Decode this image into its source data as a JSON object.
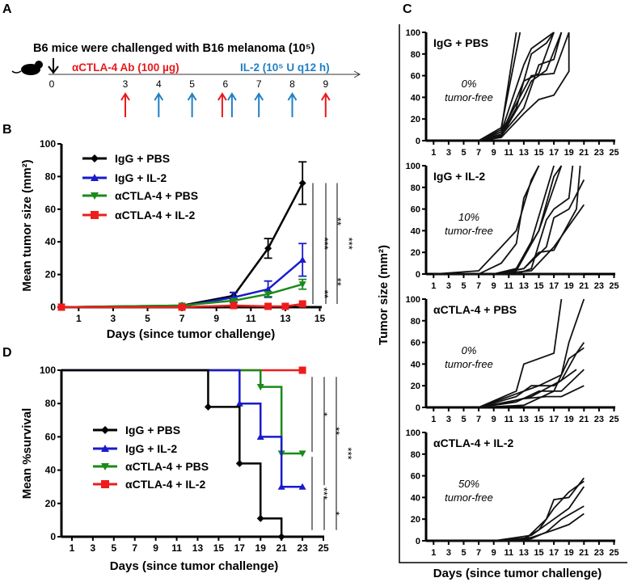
{
  "panels": {
    "a": "A",
    "b": "B",
    "c": "C",
    "d": "D"
  },
  "schedule": {
    "header": "B6 mice were challenged with B16 melanoma (10⁵)",
    "antibody_label": "αCTLA-4 Ab (100 µg)",
    "il2_label": "IL-2 (10⁵ U q12 h)",
    "day_labels": [
      "0",
      "3",
      "4",
      "5",
      "6",
      "7",
      "8",
      "9"
    ],
    "antibody_days": [
      3,
      6,
      9
    ],
    "il2_days": [
      4,
      5,
      6,
      7,
      8
    ],
    "colors": {
      "antibody": "#e8191c",
      "il2": "#1f7fc4"
    }
  },
  "chart_data": [
    {
      "id": "B",
      "type": "line",
      "xlabel": "Days (since tumor challenge)",
      "ylabel": "Mean tumor size (mm²)",
      "xlim": [
        0,
        15
      ],
      "ylim": [
        0,
        100
      ],
      "xticks": [
        1,
        3,
        5,
        7,
        9,
        11,
        13,
        15
      ],
      "yticks": [
        0,
        20,
        40,
        60,
        80,
        100
      ],
      "legend": "top-left",
      "series": [
        {
          "name": "IgG + PBS",
          "color": "#000000",
          "marker": "diamond",
          "x": [
            0,
            7,
            10,
            12,
            14
          ],
          "y": [
            0,
            1,
            7,
            36,
            76
          ],
          "err": [
            0,
            0.5,
            2,
            6,
            13
          ]
        },
        {
          "name": "IgG + IL-2",
          "color": "#1a1acc",
          "marker": "triangle-up",
          "x": [
            0,
            7,
            10,
            12,
            14
          ],
          "y": [
            0,
            0.5,
            6,
            11,
            29
          ],
          "err": [
            0,
            0,
            3,
            5,
            10
          ]
        },
        {
          "name": "αCTLA-4 + PBS",
          "color": "#1a8a1a",
          "marker": "triangle-down",
          "x": [
            0,
            7,
            10,
            12,
            14
          ],
          "y": [
            0,
            1,
            4,
            8,
            14
          ],
          "err": [
            0,
            0,
            1,
            1.5,
            3
          ]
        },
        {
          "name": "αCTLA-4 + IL-2",
          "color": "#ee1c1c",
          "marker": "square",
          "x": [
            0,
            7,
            10,
            12,
            13,
            14
          ],
          "y": [
            0,
            0,
            1,
            0.5,
            0.5,
            2
          ],
          "err": [
            0,
            0,
            0.5,
            0.5,
            0.5,
            1
          ]
        }
      ],
      "significance": [
        {
          "col": 0,
          "from": 76,
          "to": 2,
          "label": "***"
        },
        {
          "col": 0,
          "from": 14,
          "to": 2,
          "label": "**"
        },
        {
          "col": 1,
          "from": 76,
          "to": 29,
          "label": "**"
        },
        {
          "col": 1,
          "from": 29,
          "to": 2,
          "label": "**"
        },
        {
          "col": 2,
          "from": 76,
          "to": 2,
          "label": "***"
        }
      ]
    },
    {
      "id": "D",
      "type": "line",
      "subtype": "survival-step",
      "xlabel": "Days (since tumor challenge)",
      "ylabel": "Mean %survival",
      "xlim": [
        0,
        25
      ],
      "ylim": [
        0,
        100
      ],
      "xticks": [
        1,
        3,
        5,
        7,
        9,
        11,
        13,
        15,
        17,
        19,
        21,
        23,
        25
      ],
      "yticks": [
        0,
        20,
        40,
        60,
        80,
        100
      ],
      "legend": "center-left",
      "series": [
        {
          "name": "IgG + PBS",
          "color": "#000000",
          "marker": "diamond",
          "x": [
            0,
            14,
            17,
            19,
            21
          ],
          "y": [
            100,
            78,
            44,
            11,
            0
          ]
        },
        {
          "name": "IgG + IL-2",
          "color": "#1a1acc",
          "marker": "triangle-up",
          "x": [
            0,
            17,
            19,
            21,
            23
          ],
          "y": [
            100,
            80,
            60,
            30,
            30
          ]
        },
        {
          "name": "αCTLA-4 + PBS",
          "color": "#1a8a1a",
          "marker": "triangle-down",
          "x": [
            0,
            19,
            21,
            23
          ],
          "y": [
            100,
            90,
            50,
            50
          ]
        },
        {
          "name": "αCTLA-4 + IL-2",
          "color": "#ee1c1c",
          "marker": "square",
          "x": [
            0,
            23
          ],
          "y": [
            100,
            100
          ]
        }
      ],
      "significance": [
        {
          "col": 0,
          "from": 96,
          "to": 51,
          "label": "*"
        },
        {
          "col": 0,
          "from": 48,
          "to": 4,
          "label": "***"
        },
        {
          "col": 1,
          "from": 96,
          "to": 31,
          "label": "**"
        },
        {
          "col": 1,
          "from": 24,
          "to": 4,
          "label": "*"
        },
        {
          "col": 2,
          "from": 96,
          "to": 4,
          "label": "***"
        }
      ]
    },
    {
      "id": "C",
      "type": "line",
      "xlabel": "Days (since tumor challenge)",
      "ylabel": "Tumor size (mm²)",
      "xlim": [
        0,
        25
      ],
      "ylim": [
        0,
        100
      ],
      "xticks": [
        1,
        3,
        5,
        7,
        9,
        11,
        13,
        15,
        17,
        19,
        21,
        23,
        25
      ],
      "yticks": [
        0,
        20,
        40,
        60,
        80,
        100
      ],
      "subplots": [
        {
          "title": "IgG + PBS",
          "pct": "0%",
          "note": "tumor-free",
          "curves": [
            [
              [
                7,
                0
              ],
              [
                10,
                10
              ],
              [
                12,
                100
              ]
            ],
            [
              [
                7,
                0
              ],
              [
                10,
                12
              ],
              [
                12.5,
                100
              ]
            ],
            [
              [
                7,
                0
              ],
              [
                10,
                8
              ],
              [
                13,
                70
              ],
              [
                14,
                85
              ],
              [
                17,
                100
              ]
            ],
            [
              [
                7,
                0
              ],
              [
                10,
                5
              ],
              [
                13,
                55
              ],
              [
                15,
                62
              ],
              [
                17,
                100
              ]
            ],
            [
              [
                7,
                0
              ],
              [
                10,
                6
              ],
              [
                12,
                30
              ],
              [
                14,
                80
              ],
              [
                16,
                90
              ],
              [
                17,
                100
              ]
            ],
            [
              [
                7,
                0
              ],
              [
                10,
                4
              ],
              [
                13,
                40
              ],
              [
                14,
                55
              ],
              [
                16,
                65
              ],
              [
                18,
                100
              ]
            ],
            [
              [
                7,
                0
              ],
              [
                10,
                3
              ],
              [
                13,
                25
              ],
              [
                15,
                38
              ],
              [
                17,
                42
              ],
              [
                19,
                64
              ],
              [
                19,
                100
              ]
            ],
            [
              [
                7,
                0
              ],
              [
                10,
                5
              ],
              [
                13,
                30
              ],
              [
                15,
                70
              ],
              [
                17,
                75
              ],
              [
                18,
                100
              ]
            ],
            [
              [
                7,
                0
              ],
              [
                10,
                8
              ],
              [
                14,
                60
              ],
              [
                17,
                62
              ],
              [
                19,
                100
              ]
            ]
          ]
        },
        {
          "title": "IgG + IL-2",
          "pct": "10%",
          "note": "tumor-free",
          "curves": [
            [
              [
                1,
                0
              ],
              [
                7,
                3
              ],
              [
                10,
                25
              ],
              [
                12,
                40
              ],
              [
                14,
                87
              ],
              [
                15,
                100
              ]
            ],
            [
              [
                1,
                0
              ],
              [
                7,
                0
              ],
              [
                10,
                10
              ],
              [
                12,
                28
              ],
              [
                13,
                70
              ],
              [
                15,
                100
              ]
            ],
            [
              [
                9,
                0
              ],
              [
                12,
                5
              ],
              [
                14,
                30
              ],
              [
                17,
                100
              ]
            ],
            [
              [
                9,
                0
              ],
              [
                12,
                3
              ],
              [
                15,
                40
              ],
              [
                17,
                90
              ],
              [
                18,
                100
              ]
            ],
            [
              [
                9,
                0
              ],
              [
                12,
                0
              ],
              [
                14,
                5
              ],
              [
                16,
                50
              ],
              [
                17,
                60
              ],
              [
                19,
                70
              ],
              [
                19.5,
                100
              ]
            ],
            [
              [
                9,
                0
              ],
              [
                13,
                5
              ],
              [
                15,
                20
              ],
              [
                17,
                22
              ],
              [
                20,
                60
              ],
              [
                20.5,
                100
              ]
            ],
            [
              [
                9,
                0
              ],
              [
                14,
                3
              ],
              [
                17,
                25
              ],
              [
                21,
                64
              ]
            ],
            [
              [
                9,
                0
              ],
              [
                13,
                5
              ],
              [
                16,
                25
              ],
              [
                17,
                52
              ],
              [
                19,
                60
              ],
              [
                21,
                87
              ]
            ],
            [
              [
                9,
                0
              ],
              [
                12,
                5
              ],
              [
                15,
                40
              ],
              [
                18,
                100
              ]
            ],
            [
              [
                1,
                0
              ],
              [
                21,
                0
              ]
            ]
          ]
        },
        {
          "title": "αCTLA-4 + PBS",
          "pct": "0%",
          "note": "tumor-free",
          "curves": [
            [
              [
                7,
                0
              ],
              [
                12,
                15
              ],
              [
                13,
                40
              ],
              [
                17,
                50
              ],
              [
                18,
                100
              ]
            ],
            [
              [
                7,
                0
              ],
              [
                13,
                15
              ],
              [
                15,
                20
              ],
              [
                18,
                30
              ],
              [
                19,
                60
              ],
              [
                21,
                100
              ]
            ],
            [
              [
                7,
                0
              ],
              [
                11,
                5
              ],
              [
                14,
                10
              ],
              [
                18,
                25
              ],
              [
                20,
                50
              ],
              [
                21,
                60
              ]
            ],
            [
              [
                7,
                0
              ],
              [
                12,
                5
              ],
              [
                15,
                15
              ],
              [
                18,
                15
              ],
              [
                21,
                35
              ]
            ],
            [
              [
                7,
                0
              ],
              [
                13,
                8
              ],
              [
                16,
                10
              ],
              [
                18,
                10
              ],
              [
                21,
                20
              ]
            ],
            [
              [
                7,
                0
              ],
              [
                12,
                10
              ],
              [
                14,
                20
              ],
              [
                17,
                20
              ],
              [
                20,
                35
              ]
            ],
            [
              [
                7,
                0
              ],
              [
                13,
                2
              ],
              [
                17,
                15
              ],
              [
                19,
                45
              ],
              [
                21,
                55
              ]
            ]
          ]
        },
        {
          "title": "αCTLA-4 + IL-2",
          "pct": "50%",
          "note": "tumor-free",
          "curves": [
            [
              [
                9,
                0
              ],
              [
                13,
                0
              ],
              [
                16,
                20
              ],
              [
                17,
                38
              ],
              [
                19,
                40
              ],
              [
                21,
                58
              ]
            ],
            [
              [
                9,
                0
              ],
              [
                13,
                2
              ],
              [
                15,
                10
              ],
              [
                17,
                30
              ],
              [
                19,
                45
              ],
              [
                21,
                55
              ]
            ],
            [
              [
                9,
                0
              ],
              [
                14,
                5
              ],
              [
                17,
                20
              ],
              [
                19,
                30
              ],
              [
                21,
                50
              ]
            ],
            [
              [
                9,
                0
              ],
              [
                14,
                2
              ],
              [
                16,
                8
              ],
              [
                18,
                20
              ],
              [
                21,
                32
              ]
            ],
            [
              [
                9,
                0
              ],
              [
                14,
                3
              ],
              [
                17,
                10
              ],
              [
                19,
                15
              ],
              [
                21,
                25
              ]
            ],
            [
              [
                1,
                0
              ],
              [
                21,
                0
              ]
            ]
          ]
        }
      ]
    }
  ]
}
